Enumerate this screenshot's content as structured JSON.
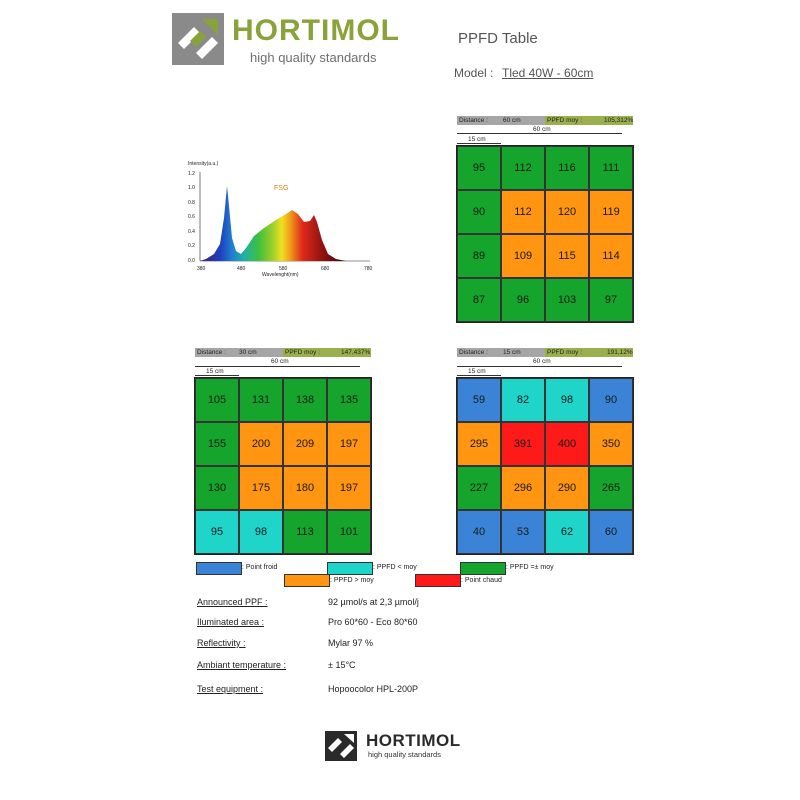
{
  "header": {
    "brand": "HORTIMOL",
    "tagline": "high quality standards",
    "title": "PPFD Table",
    "model_label": "Model :",
    "model_value": "Tled 40W - 60cm"
  },
  "colors": {
    "brand_green": "#8aa23a",
    "cold": "#3b83d6",
    "below": "#1fd4c8",
    "average": "#15a52c",
    "above": "#ff9510",
    "hot": "#ff1a1a"
  },
  "spectrum": {
    "ylabel": "Intensity(a.u.)",
    "xlabel": "Wavelenght(nm)",
    "tag": "FSG",
    "yticks": [
      "1.2",
      "1.0",
      "0.8",
      "0.6",
      "0.4",
      "0.2",
      "0.0"
    ],
    "xticks": [
      "380",
      "480",
      "580",
      "680",
      "780"
    ]
  },
  "tables": [
    {
      "distance_label": "Distance :",
      "distance": "60 cm",
      "ppfd_label": "PPFD moy :",
      "ppfd_value": "105,312%",
      "width_label": "60 cm",
      "cell_label": "15 cm",
      "rows": [
        [
          "95",
          "112",
          "116",
          "111"
        ],
        [
          "90",
          "112",
          "120",
          "119"
        ],
        [
          "89",
          "109",
          "115",
          "114"
        ],
        [
          "87",
          "96",
          "103",
          "97"
        ]
      ],
      "classes": [
        [
          "green",
          "green",
          "green",
          "green"
        ],
        [
          "green",
          "orange",
          "orange",
          "orange"
        ],
        [
          "green",
          "orange",
          "orange",
          "orange"
        ],
        [
          "green",
          "green",
          "green",
          "green"
        ]
      ]
    },
    {
      "distance_label": "Distance :",
      "distance": "30 cm",
      "ppfd_label": "PPFD moy :",
      "ppfd_value": "147,437%",
      "width_label": "60 cm",
      "cell_label": "15 cm",
      "rows": [
        [
          "105",
          "131",
          "138",
          "135"
        ],
        [
          "155",
          "200",
          "209",
          "197"
        ],
        [
          "130",
          "175",
          "180",
          "197"
        ],
        [
          "95",
          "98",
          "113",
          "101"
        ]
      ],
      "classes": [
        [
          "green",
          "green",
          "green",
          "green"
        ],
        [
          "green",
          "orange",
          "orange",
          "orange"
        ],
        [
          "green",
          "orange",
          "orange",
          "orange"
        ],
        [
          "cyan",
          "cyan",
          "green",
          "green"
        ]
      ]
    },
    {
      "distance_label": "Distance :",
      "distance": "15 cm",
      "ppfd_label": "PPFD moy :",
      "ppfd_value": "191,12%",
      "width_label": "60 cm",
      "cell_label": "15 cm",
      "rows": [
        [
          "59",
          "82",
          "98",
          "90"
        ],
        [
          "295",
          "391",
          "400",
          "350"
        ],
        [
          "227",
          "296",
          "290",
          "265"
        ],
        [
          "40",
          "53",
          "62",
          "60"
        ]
      ],
      "classes": [
        [
          "cold",
          "cyan",
          "cyan",
          "cold"
        ],
        [
          "orange",
          "red",
          "red",
          "orange"
        ],
        [
          "green",
          "orange",
          "orange",
          "green"
        ],
        [
          "cold",
          "cold",
          "cyan",
          "cold"
        ]
      ]
    }
  ],
  "legend": {
    "cold": ": Point froid",
    "below": ": PPFD < moy",
    "average": ": PPFD =± moy",
    "above": ": PPFD > moy",
    "hot": ": Point chaud"
  },
  "specs": [
    {
      "label": "Announced PPF :",
      "value": "92 µmol/s at 2,3 µmol/j"
    },
    {
      "label": "Iluminated area :",
      "value": "Pro 60*60  -  Eco 80*60"
    },
    {
      "label": "Reflectivity :",
      "value": "Mylar 97 %"
    },
    {
      "label": "Ambiant temperature :",
      "value": "± 15°C"
    },
    {
      "label": "Test equipment :",
      "value": "Hopoocolor HPL-200P"
    }
  ],
  "footer": {
    "brand": "HORTIMOL",
    "tagline": "high quality standards"
  }
}
